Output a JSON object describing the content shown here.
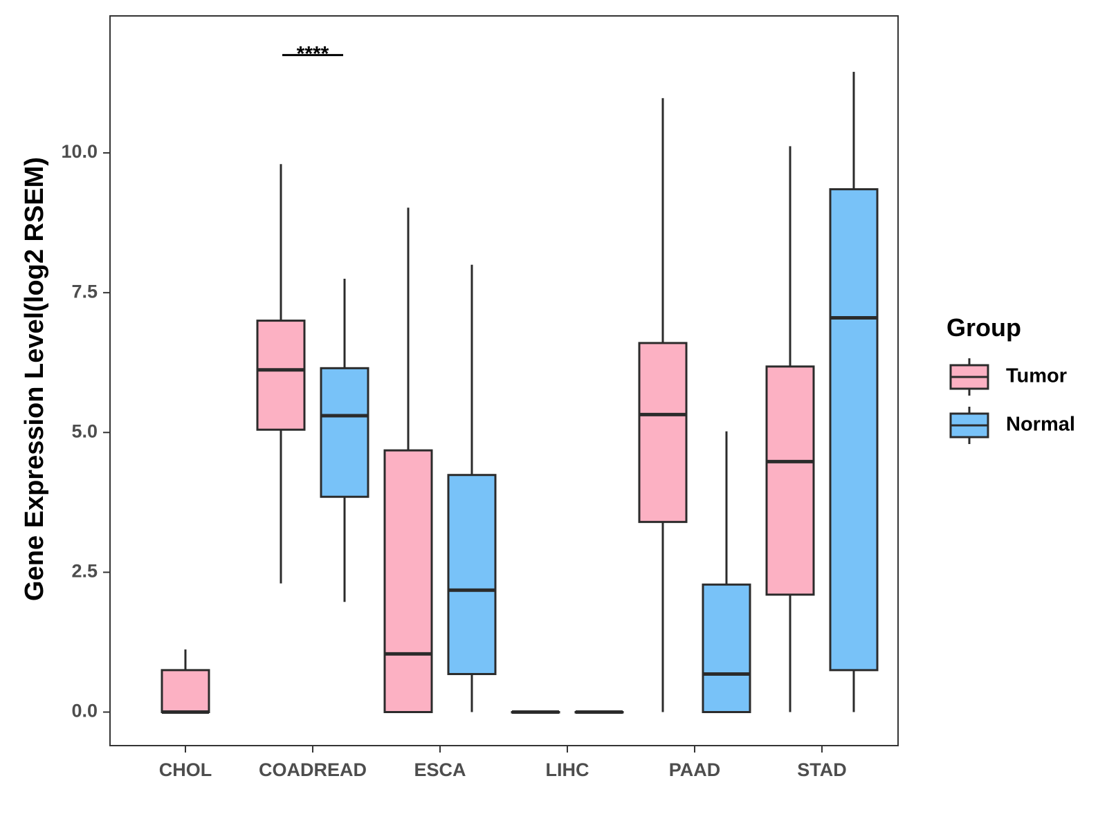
{
  "chart_data": {
    "type": "boxplot",
    "title": "",
    "xlabel": "",
    "ylabel": "Gene Expression Level(log2 RSEM)",
    "ylim": [
      -0.6,
      12.45
    ],
    "yticks": [
      0.0,
      2.5,
      5.0,
      7.5,
      10.0
    ],
    "ytick_labels": [
      "0.0",
      "2.5",
      "5.0",
      "7.5",
      "10.0"
    ],
    "categories": [
      "CHOL",
      "COADREAD",
      "ESCA",
      "LIHC",
      "PAAD",
      "STAD"
    ],
    "legend": {
      "title": "Group",
      "position": "right"
    },
    "grid": false,
    "series": [
      {
        "name": "Tumor",
        "color": "#FCB1C3",
        "boxes": [
          {
            "category": "CHOL",
            "whisker_low": 0.0,
            "q1": 0.0,
            "median": 0.0,
            "q3": 0.75,
            "whisker_high": 1.12,
            "offset": 0
          },
          {
            "category": "COADREAD",
            "whisker_low": 2.3,
            "q1": 5.05,
            "median": 6.12,
            "q3": 7.0,
            "whisker_high": 9.8,
            "offset": -1
          },
          {
            "category": "ESCA",
            "whisker_low": 0.0,
            "q1": 0.0,
            "median": 1.04,
            "q3": 4.68,
            "whisker_high": 9.02,
            "offset": -1
          },
          {
            "category": "LIHC",
            "whisker_low": 0.0,
            "q1": 0.0,
            "median": 0.0,
            "q3": 0.0,
            "whisker_high": 0.0,
            "offset": -1
          },
          {
            "category": "PAAD",
            "whisker_low": 0.0,
            "q1": 3.4,
            "median": 5.32,
            "q3": 6.6,
            "whisker_high": 10.98,
            "offset": -1
          },
          {
            "category": "STAD",
            "whisker_low": 0.0,
            "q1": 2.1,
            "median": 4.48,
            "q3": 6.18,
            "whisker_high": 10.12,
            "offset": -1
          }
        ]
      },
      {
        "name": "Normal",
        "color": "#78C2F8",
        "boxes": [
          {
            "category": "COADREAD",
            "whisker_low": 1.97,
            "q1": 3.85,
            "median": 5.3,
            "q3": 6.15,
            "whisker_high": 7.75,
            "offset": 1
          },
          {
            "category": "ESCA",
            "whisker_low": 0.0,
            "q1": 0.68,
            "median": 2.18,
            "q3": 4.24,
            "whisker_high": 8.0,
            "offset": 1
          },
          {
            "category": "LIHC",
            "whisker_low": 0.0,
            "q1": 0.0,
            "median": 0.0,
            "q3": 0.0,
            "whisker_high": 0.0,
            "offset": 1
          },
          {
            "category": "PAAD",
            "whisker_low": 0.0,
            "q1": 0.0,
            "median": 0.68,
            "q3": 2.28,
            "whisker_high": 5.02,
            "offset": 1
          },
          {
            "category": "STAD",
            "whisker_low": 0.0,
            "q1": 0.75,
            "median": 7.05,
            "q3": 9.35,
            "whisker_high": 11.45,
            "offset": 1
          }
        ]
      }
    ],
    "annotations": [
      {
        "category": "COADREAD",
        "label": "****",
        "y": 11.75
      }
    ]
  }
}
